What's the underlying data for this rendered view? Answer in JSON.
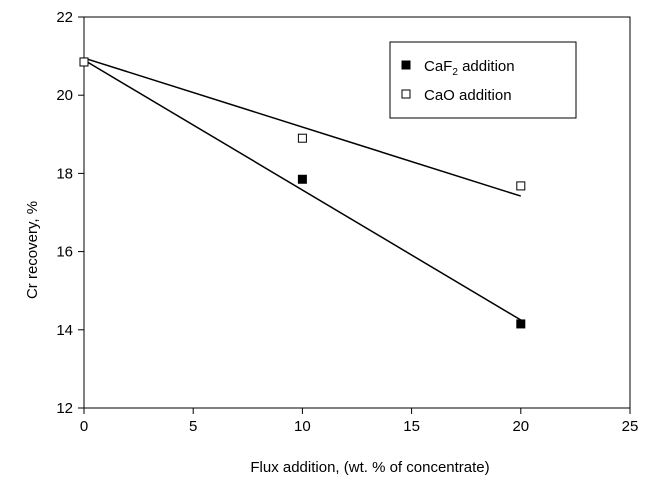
{
  "chart_data": {
    "type": "scatter",
    "title": "",
    "xlabel": "Flux addition, (wt. % of concentrate)",
    "ylabel": "Cr recovery, %",
    "xlim": [
      0,
      25
    ],
    "ylim": [
      12,
      22
    ],
    "x_ticks": [
      0,
      5,
      10,
      15,
      20,
      25
    ],
    "y_ticks": [
      12,
      14,
      16,
      18,
      20,
      22
    ],
    "grid": false,
    "legend_position": "top-right",
    "series": [
      {
        "name_prefix": "CaF",
        "name_subscript": "2",
        "name_suffix": " addition",
        "marker": "filled-square",
        "color": "#000000",
        "points": [
          {
            "x": 0,
            "y": 20.85
          },
          {
            "x": 10,
            "y": 17.85
          },
          {
            "x": 20,
            "y": 14.15
          }
        ],
        "trendline": {
          "x0": 0,
          "y0": 20.9,
          "x1": 20,
          "y1": 14.25
        }
      },
      {
        "name": "CaO addition",
        "marker": "open-square",
        "color": "#000000",
        "points": [
          {
            "x": 0,
            "y": 20.85
          },
          {
            "x": 10,
            "y": 18.9
          },
          {
            "x": 20,
            "y": 17.68
          }
        ],
        "trendline": {
          "x0": 0,
          "y0": 20.95,
          "x1": 20,
          "y1": 17.42
        }
      }
    ]
  }
}
